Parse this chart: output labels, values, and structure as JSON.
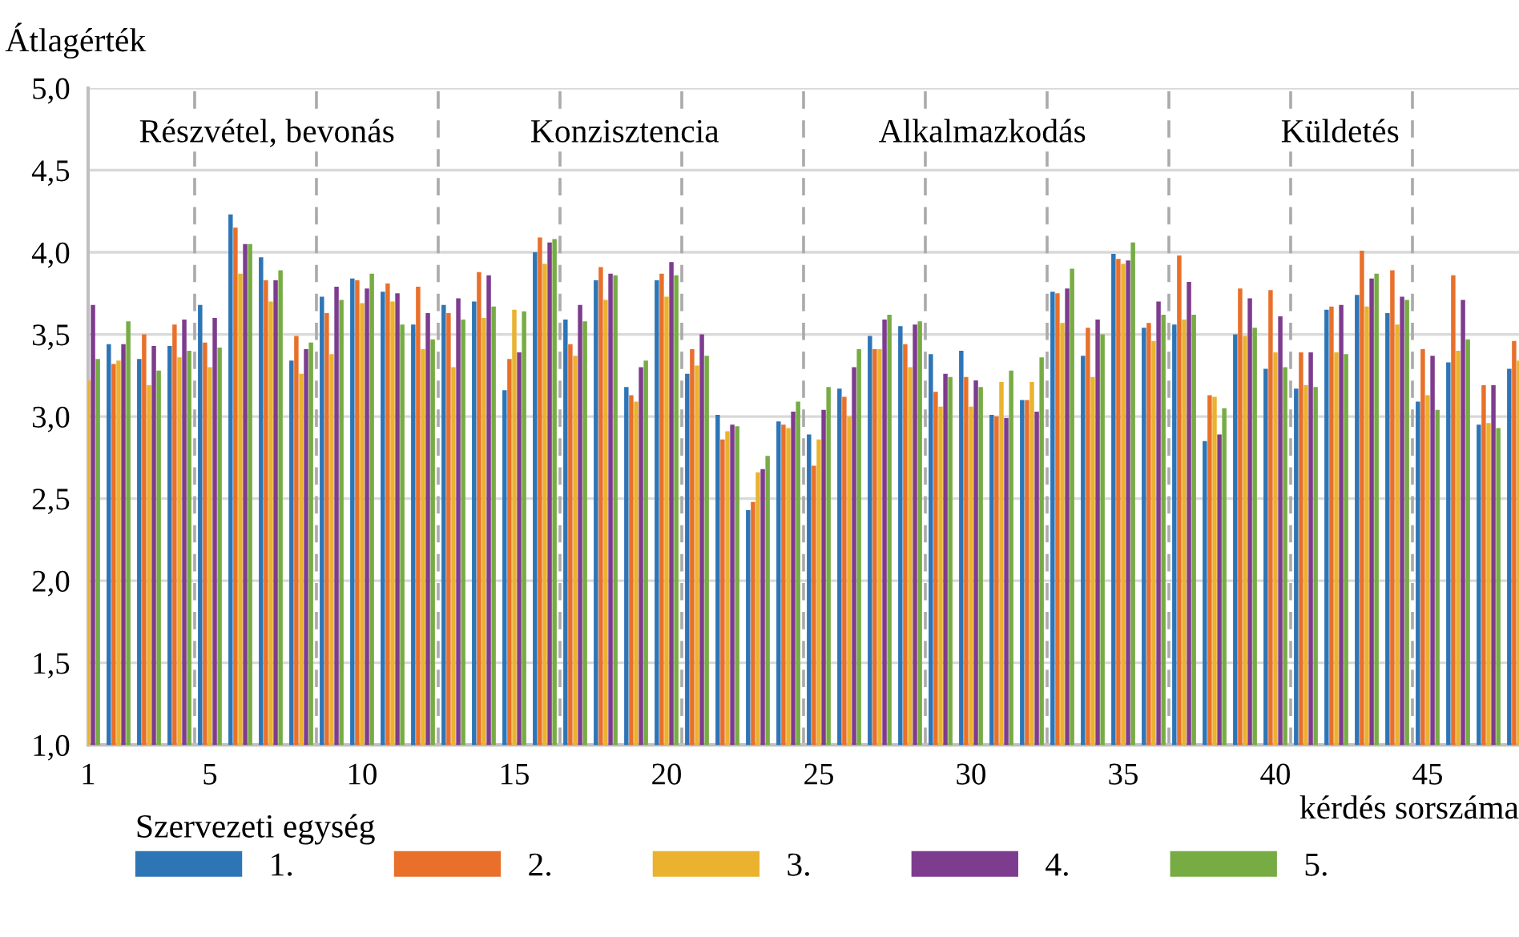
{
  "chart_data": {
    "type": "bar",
    "ylabel": "Átlagérték",
    "xlabel": "kérdés sorszáma",
    "legend_title": "Szervezeti egység",
    "annotations": [
      "Részvétel, bevonás",
      "Konzisztencia",
      "Alkalmazkodás",
      "Küldetés"
    ],
    "x": [
      1,
      2,
      3,
      4,
      5,
      6,
      7,
      8,
      9,
      10,
      11,
      12,
      13,
      14,
      15,
      16,
      17,
      18,
      19,
      20,
      21,
      22,
      23,
      24,
      25,
      26,
      27,
      28,
      29,
      30,
      31,
      32,
      33,
      34,
      35,
      36,
      37,
      38,
      39,
      40,
      41,
      42,
      43,
      44,
      45,
      46,
      47,
      48
    ],
    "xlim": [
      1,
      48
    ],
    "xticks": [
      1,
      5,
      10,
      15,
      20,
      25,
      30,
      35,
      40,
      45
    ],
    "ylim": [
      1,
      5
    ],
    "yticks": [
      {
        "value": 1,
        "label": "1,0"
      },
      {
        "value": 1.5,
        "label": "1,5"
      },
      {
        "value": 2,
        "label": "2,0"
      },
      {
        "value": 2.5,
        "label": "2,5"
      },
      {
        "value": 3,
        "label": "3,0"
      },
      {
        "value": 3.5,
        "label": "3,5"
      },
      {
        "value": 4,
        "label": "4,0"
      },
      {
        "value": 4.5,
        "label": "4,5"
      },
      {
        "value": 5,
        "label": "5,0"
      }
    ],
    "grid": "y",
    "legend": "bottom",
    "ref_lines": [
      {
        "axis": "x",
        "value": 4.5,
        "color": "#aaaaaa",
        "line_style": "dashed"
      },
      {
        "axis": "x",
        "value": 8.5,
        "color": "#aaaaaa",
        "line_style": "dashed"
      },
      {
        "axis": "x",
        "value": 12.5,
        "color": "#aaaaaa",
        "line_style": "dashed"
      },
      {
        "axis": "x",
        "value": 16.5,
        "color": "#aaaaaa",
        "line_style": "dashed"
      },
      {
        "axis": "x",
        "value": 20.5,
        "color": "#aaaaaa",
        "line_style": "dashed"
      },
      {
        "axis": "x",
        "value": 24.5,
        "color": "#aaaaaa",
        "line_style": "dashed"
      },
      {
        "axis": "x",
        "value": 28.5,
        "color": "#aaaaaa",
        "line_style": "dashed"
      },
      {
        "axis": "x",
        "value": 32.5,
        "color": "#aaaaaa",
        "line_style": "dashed"
      },
      {
        "axis": "x",
        "value": 36.5,
        "color": "#aaaaaa",
        "line_style": "dashed"
      },
      {
        "axis": "x",
        "value": 40.5,
        "color": "#aaaaaa",
        "line_style": "dashed"
      },
      {
        "axis": "x",
        "value": 44.5,
        "color": "#aaaaaa",
        "line_style": "dashed"
      }
    ],
    "series": [
      {
        "name": "1.",
        "color": "#2e75b6",
        "values": [
          null,
          3.44,
          3.35,
          3.43,
          3.68,
          4.23,
          3.97,
          3.34,
          3.73,
          3.84,
          3.76,
          3.56,
          3.68,
          3.7,
          3.16,
          4.0,
          3.59,
          3.83,
          3.18,
          3.83,
          3.26,
          3.01,
          2.43,
          2.97,
          2.89,
          3.17,
          3.49,
          3.55,
          3.38,
          3.4,
          3.01,
          3.1,
          3.76,
          3.37,
          3.99,
          3.54,
          3.56,
          2.85,
          3.5,
          3.29,
          3.17,
          3.65,
          3.74,
          3.63,
          3.09,
          3.33,
          2.95,
          3.29
        ]
      },
      {
        "name": "2.",
        "color": "#e8702a",
        "values": [
          null,
          3.32,
          3.5,
          3.56,
          3.45,
          4.15,
          3.83,
          3.49,
          3.63,
          3.83,
          3.81,
          3.79,
          3.63,
          3.88,
          3.35,
          4.09,
          3.44,
          3.91,
          3.13,
          3.87,
          3.41,
          2.86,
          2.48,
          2.95,
          2.7,
          3.12,
          3.41,
          3.44,
          3.15,
          3.24,
          3.0,
          3.1,
          3.75,
          3.54,
          3.96,
          3.57,
          3.98,
          3.13,
          3.78,
          3.77,
          3.39,
          3.67,
          4.01,
          3.89,
          3.41,
          3.86,
          3.19,
          3.46
        ]
      },
      {
        "name": "3.",
        "color": "#eab22f",
        "values": [
          3.22,
          3.34,
          3.19,
          3.36,
          3.3,
          3.87,
          3.7,
          3.26,
          3.38,
          3.69,
          3.7,
          3.41,
          3.3,
          3.6,
          3.65,
          3.93,
          3.37,
          3.71,
          3.09,
          3.73,
          3.31,
          2.91,
          2.66,
          2.93,
          2.86,
          3.0,
          3.41,
          3.3,
          3.06,
          3.06,
          3.21,
          3.21,
          3.57,
          3.24,
          3.93,
          3.46,
          3.59,
          3.12,
          3.49,
          3.39,
          3.19,
          3.39,
          3.67,
          3.56,
          3.13,
          3.4,
          2.96,
          3.34
        ]
      },
      {
        "name": "4.",
        "color": "#7e3c8e",
        "values": [
          3.68,
          3.44,
          3.43,
          3.59,
          3.6,
          4.05,
          3.83,
          3.41,
          3.79,
          3.78,
          3.75,
          3.63,
          3.72,
          3.86,
          3.39,
          4.06,
          3.68,
          3.87,
          3.3,
          3.94,
          3.5,
          2.95,
          2.68,
          3.03,
          3.04,
          3.3,
          3.59,
          3.56,
          3.26,
          3.22,
          2.99,
          3.03,
          3.78,
          3.59,
          3.95,
          3.7,
          3.82,
          2.89,
          3.72,
          3.61,
          3.39,
          3.68,
          3.84,
          3.73,
          3.37,
          3.71,
          3.19,
          null
        ]
      },
      {
        "name": "5.",
        "color": "#77ac45",
        "values": [
          3.35,
          3.58,
          3.28,
          3.4,
          3.42,
          4.05,
          3.89,
          3.45,
          3.71,
          3.87,
          3.56,
          3.47,
          3.59,
          3.67,
          3.64,
          4.08,
          3.58,
          3.86,
          3.34,
          3.86,
          3.37,
          2.94,
          2.76,
          3.09,
          3.18,
          3.41,
          3.62,
          3.58,
          3.24,
          3.18,
          3.28,
          3.36,
          3.9,
          3.5,
          4.06,
          3.62,
          3.62,
          3.05,
          3.54,
          3.3,
          3.18,
          3.38,
          3.87,
          3.71,
          3.04,
          3.47,
          2.93,
          null
        ]
      }
    ]
  }
}
